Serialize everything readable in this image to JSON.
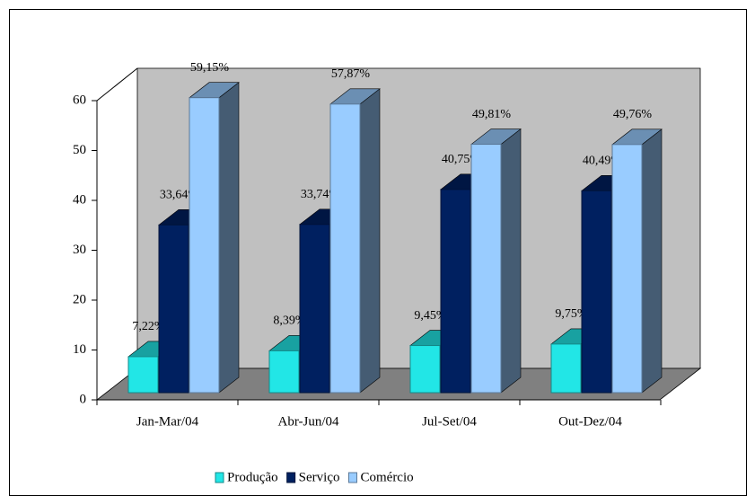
{
  "chart_data": {
    "type": "bar",
    "categories": [
      "Jan-Mar/04",
      "Abr-Jun/04",
      "Jul-Set/04",
      "Out-Dez/04"
    ],
    "series": [
      {
        "name": "Produção",
        "color": "#22e6e6",
        "values": [
          7.22,
          8.39,
          9.45,
          9.75
        ],
        "value_labels": [
          "7,22%",
          "8,39%",
          "9,45%",
          "9,75%"
        ]
      },
      {
        "name": "Serviço",
        "color": "#002060",
        "values": [
          33.64,
          33.74,
          40.75,
          40.49
        ],
        "value_labels": [
          "33,64%",
          "33,74%",
          "40,75%",
          "40,49%"
        ]
      },
      {
        "name": "Comércio",
        "color": "#99ccff",
        "values": [
          59.15,
          57.87,
          49.81,
          49.76
        ],
        "value_labels": [
          "59,15%",
          "57,87%",
          "49,81%",
          "49,76%"
        ]
      }
    ],
    "ylim": [
      0,
      60
    ],
    "yticks": [
      0,
      10,
      20,
      30,
      40,
      50,
      60
    ],
    "legend": "bottom"
  }
}
